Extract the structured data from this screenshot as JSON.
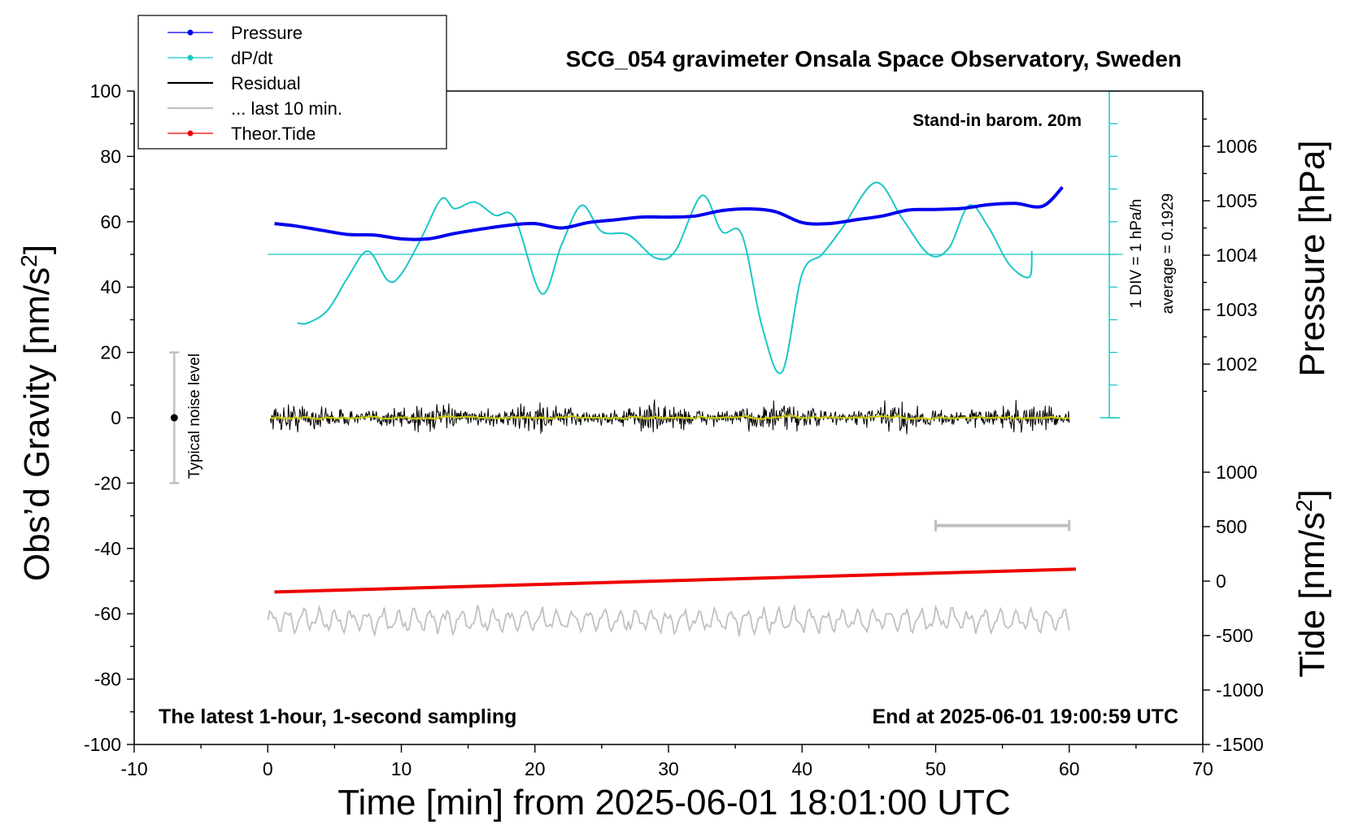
{
  "chart_data": {
    "type": "line",
    "title": "SCG_054 gravimeter Onsala Space Observatory, Sweden",
    "xlabel": "Time [min] from 2025-06-01 18:01:00 UTC",
    "ylabel_left": "Obs’d Gravity [nm/s",
    "ylabel_left_sup": "2",
    "ylabel_left_end": "]",
    "ylabel_right_top": "Pressure [hPa]",
    "ylabel_right_bottom": "Tide [nm/s",
    "ylabel_right_bottom_sup": "2",
    "ylabel_right_bottom_end": "]",
    "xlim": [
      -10,
      70
    ],
    "ylim": [
      -100,
      100
    ],
    "x_ticks": [
      "-10",
      "0",
      "10",
      "20",
      "30",
      "40",
      "50",
      "60",
      "70"
    ],
    "y_ticks": [
      "100",
      "80",
      "60",
      "40",
      "20",
      "0",
      "-20",
      "-40",
      "-60",
      "-80",
      "-100"
    ],
    "pressure_axis": {
      "ticks": [
        "1006",
        "1005",
        "1004",
        "1003",
        "1002"
      ],
      "values": [
        1006,
        1005,
        1004,
        1003,
        1002
      ],
      "range": [
        1001,
        1007
      ]
    },
    "tide_axis": {
      "ticks": [
        "1000",
        "500",
        "0",
        "-500",
        "-1000",
        "-1500"
      ],
      "values": [
        1000,
        500,
        0,
        -500,
        -1000,
        -1500
      ],
      "range": [
        -1500,
        1000
      ]
    },
    "annotations": {
      "barometer": "Stand-in barom. 20m",
      "div": "1 DIV = 1 hPa/h",
      "average": "average = 0.1929",
      "noise": "Typical noise level",
      "sampling": "The latest 1-hour, 1-second sampling",
      "end": "End at 2025-06-01 19:00:59 UTC"
    },
    "legend": [
      "Pressure",
      "dP/dt",
      "Residual",
      "... last 10 min.",
      "Theor.Tide"
    ],
    "series": [
      {
        "name": "Pressure",
        "color": "#0000ee",
        "unit": "hPa",
        "x": [
          0.5,
          2,
          4,
          6,
          8,
          10,
          12,
          14,
          16,
          18,
          20,
          22,
          24,
          26,
          28,
          30,
          32,
          34,
          36,
          38,
          40,
          42,
          44,
          46,
          48,
          50,
          52,
          54,
          56,
          58,
          59.5
        ],
        "values": [
          1004.58,
          1004.54,
          1004.46,
          1004.38,
          1004.37,
          1004.3,
          1004.3,
          1004.4,
          1004.48,
          1004.55,
          1004.58,
          1004.5,
          1004.6,
          1004.65,
          1004.7,
          1004.7,
          1004.72,
          1004.82,
          1004.85,
          1004.8,
          1004.6,
          1004.58,
          1004.65,
          1004.72,
          1004.83,
          1004.84,
          1004.86,
          1004.93,
          1004.95,
          1004.9,
          1005.25
        ]
      },
      {
        "name": "dP/dt",
        "color": "#1bc6c6",
        "unit": "gravity-axis units (1 DIV = 1 hPa/h, centred at 50)",
        "x": [
          2.2,
          3,
          4.5,
          6,
          7.5,
          9,
          10,
          11.5,
          13,
          14,
          15.5,
          17,
          18.5,
          20.5,
          22,
          23.5,
          25,
          27,
          29,
          30.5,
          32.5,
          34,
          35.5,
          37,
          38.5,
          40,
          41.5,
          43,
          45.5,
          47.5,
          49.5,
          51,
          52.5,
          54,
          55.5,
          57,
          57.2
        ],
        "values": [
          29,
          29,
          33,
          43,
          51,
          42,
          44,
          55,
          67,
          64,
          66,
          62,
          61,
          38,
          53,
          65,
          57,
          56,
          49,
          51,
          68,
          57,
          56,
          28,
          14,
          44,
          50,
          58,
          72,
          61,
          50,
          52,
          65,
          58,
          47,
          43,
          51
        ]
      },
      {
        "name": "Residual",
        "color": "#000000",
        "note": "1-second residual noise about 0, roughly ±6 nm/s²"
      },
      {
        "name": "... last 10 min.",
        "color": "#c0c0c0",
        "note": "running mean (yellow) and gray trace centred near -62"
      },
      {
        "name": "Theor.Tide",
        "color": "#ee0000",
        "unit": "nm/s²",
        "x": [
          0.5,
          60.5
        ],
        "values": [
          -100,
          110
        ]
      }
    ]
  }
}
